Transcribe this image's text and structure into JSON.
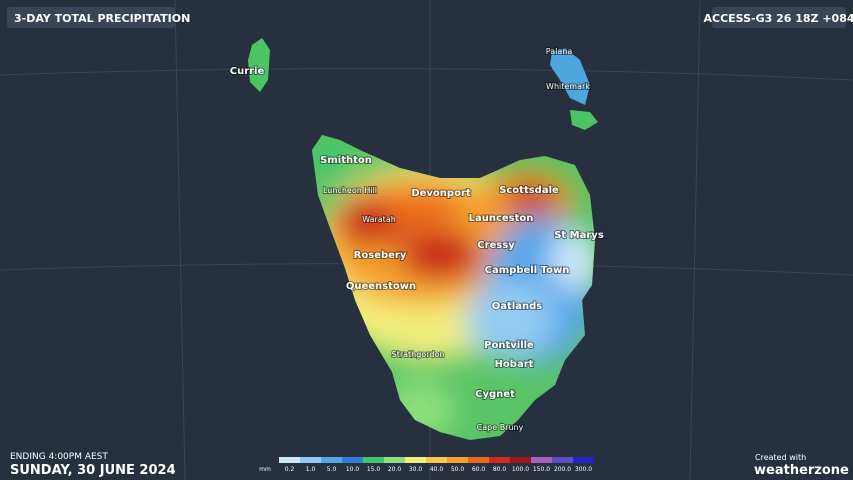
{
  "header": {
    "title": "3-DAY TOTAL PRECIPITATION",
    "model": "ACCESS-G3 26 18Z +084"
  },
  "places": {
    "currie": "Currie",
    "palana": "Palana",
    "whitemark": "Whitemark",
    "smithton": "Smithton",
    "luncheon_hill": "Luncheon Hill",
    "devonport": "Devonport",
    "scottsdale": "Scottsdale",
    "waratah": "Waratah",
    "launceston": "Launceston",
    "st_marys": "St Marys",
    "cressy": "Cressy",
    "rosebery": "Rosebery",
    "campbell_town": "Campbell Town",
    "queenstown": "Queenstown",
    "oatlands": "Oatlands",
    "pontville": "Pontville",
    "strathgordon": "Strathgordon",
    "hobart": "Hobart",
    "cygnet": "Cygnet",
    "cape_bruny": "Cape Bruny"
  },
  "footer": {
    "ending": "ENDING 4:00PM AEST",
    "date": "SUNDAY, 30 JUNE 2024",
    "created_with": "Created with",
    "brand": "weatherzone"
  },
  "legend": {
    "unit": "mm",
    "items": [
      {
        "label": "0.2",
        "color": "#cde8fb"
      },
      {
        "label": "1.0",
        "color": "#93cbf3"
      },
      {
        "label": "5.0",
        "color": "#55a5ea"
      },
      {
        "label": "10.0",
        "color": "#2f80dc"
      },
      {
        "label": "15.0",
        "color": "#3fc56c"
      },
      {
        "label": "20.0",
        "color": "#8fe07c"
      },
      {
        "label": "30.0",
        "color": "#f2ee7c"
      },
      {
        "label": "40.0",
        "color": "#f7c84b"
      },
      {
        "label": "50.0",
        "color": "#f49f2b"
      },
      {
        "label": "60.0",
        "color": "#ec6a1b"
      },
      {
        "label": "80.0",
        "color": "#d22b1b"
      },
      {
        "label": "100.0",
        "color": "#9f1520"
      },
      {
        "label": "150.0",
        "color": "#a95fbf"
      },
      {
        "label": "200.0",
        "color": "#5c4fc0"
      },
      {
        "label": "300.0",
        "color": "#2222cf"
      }
    ]
  }
}
